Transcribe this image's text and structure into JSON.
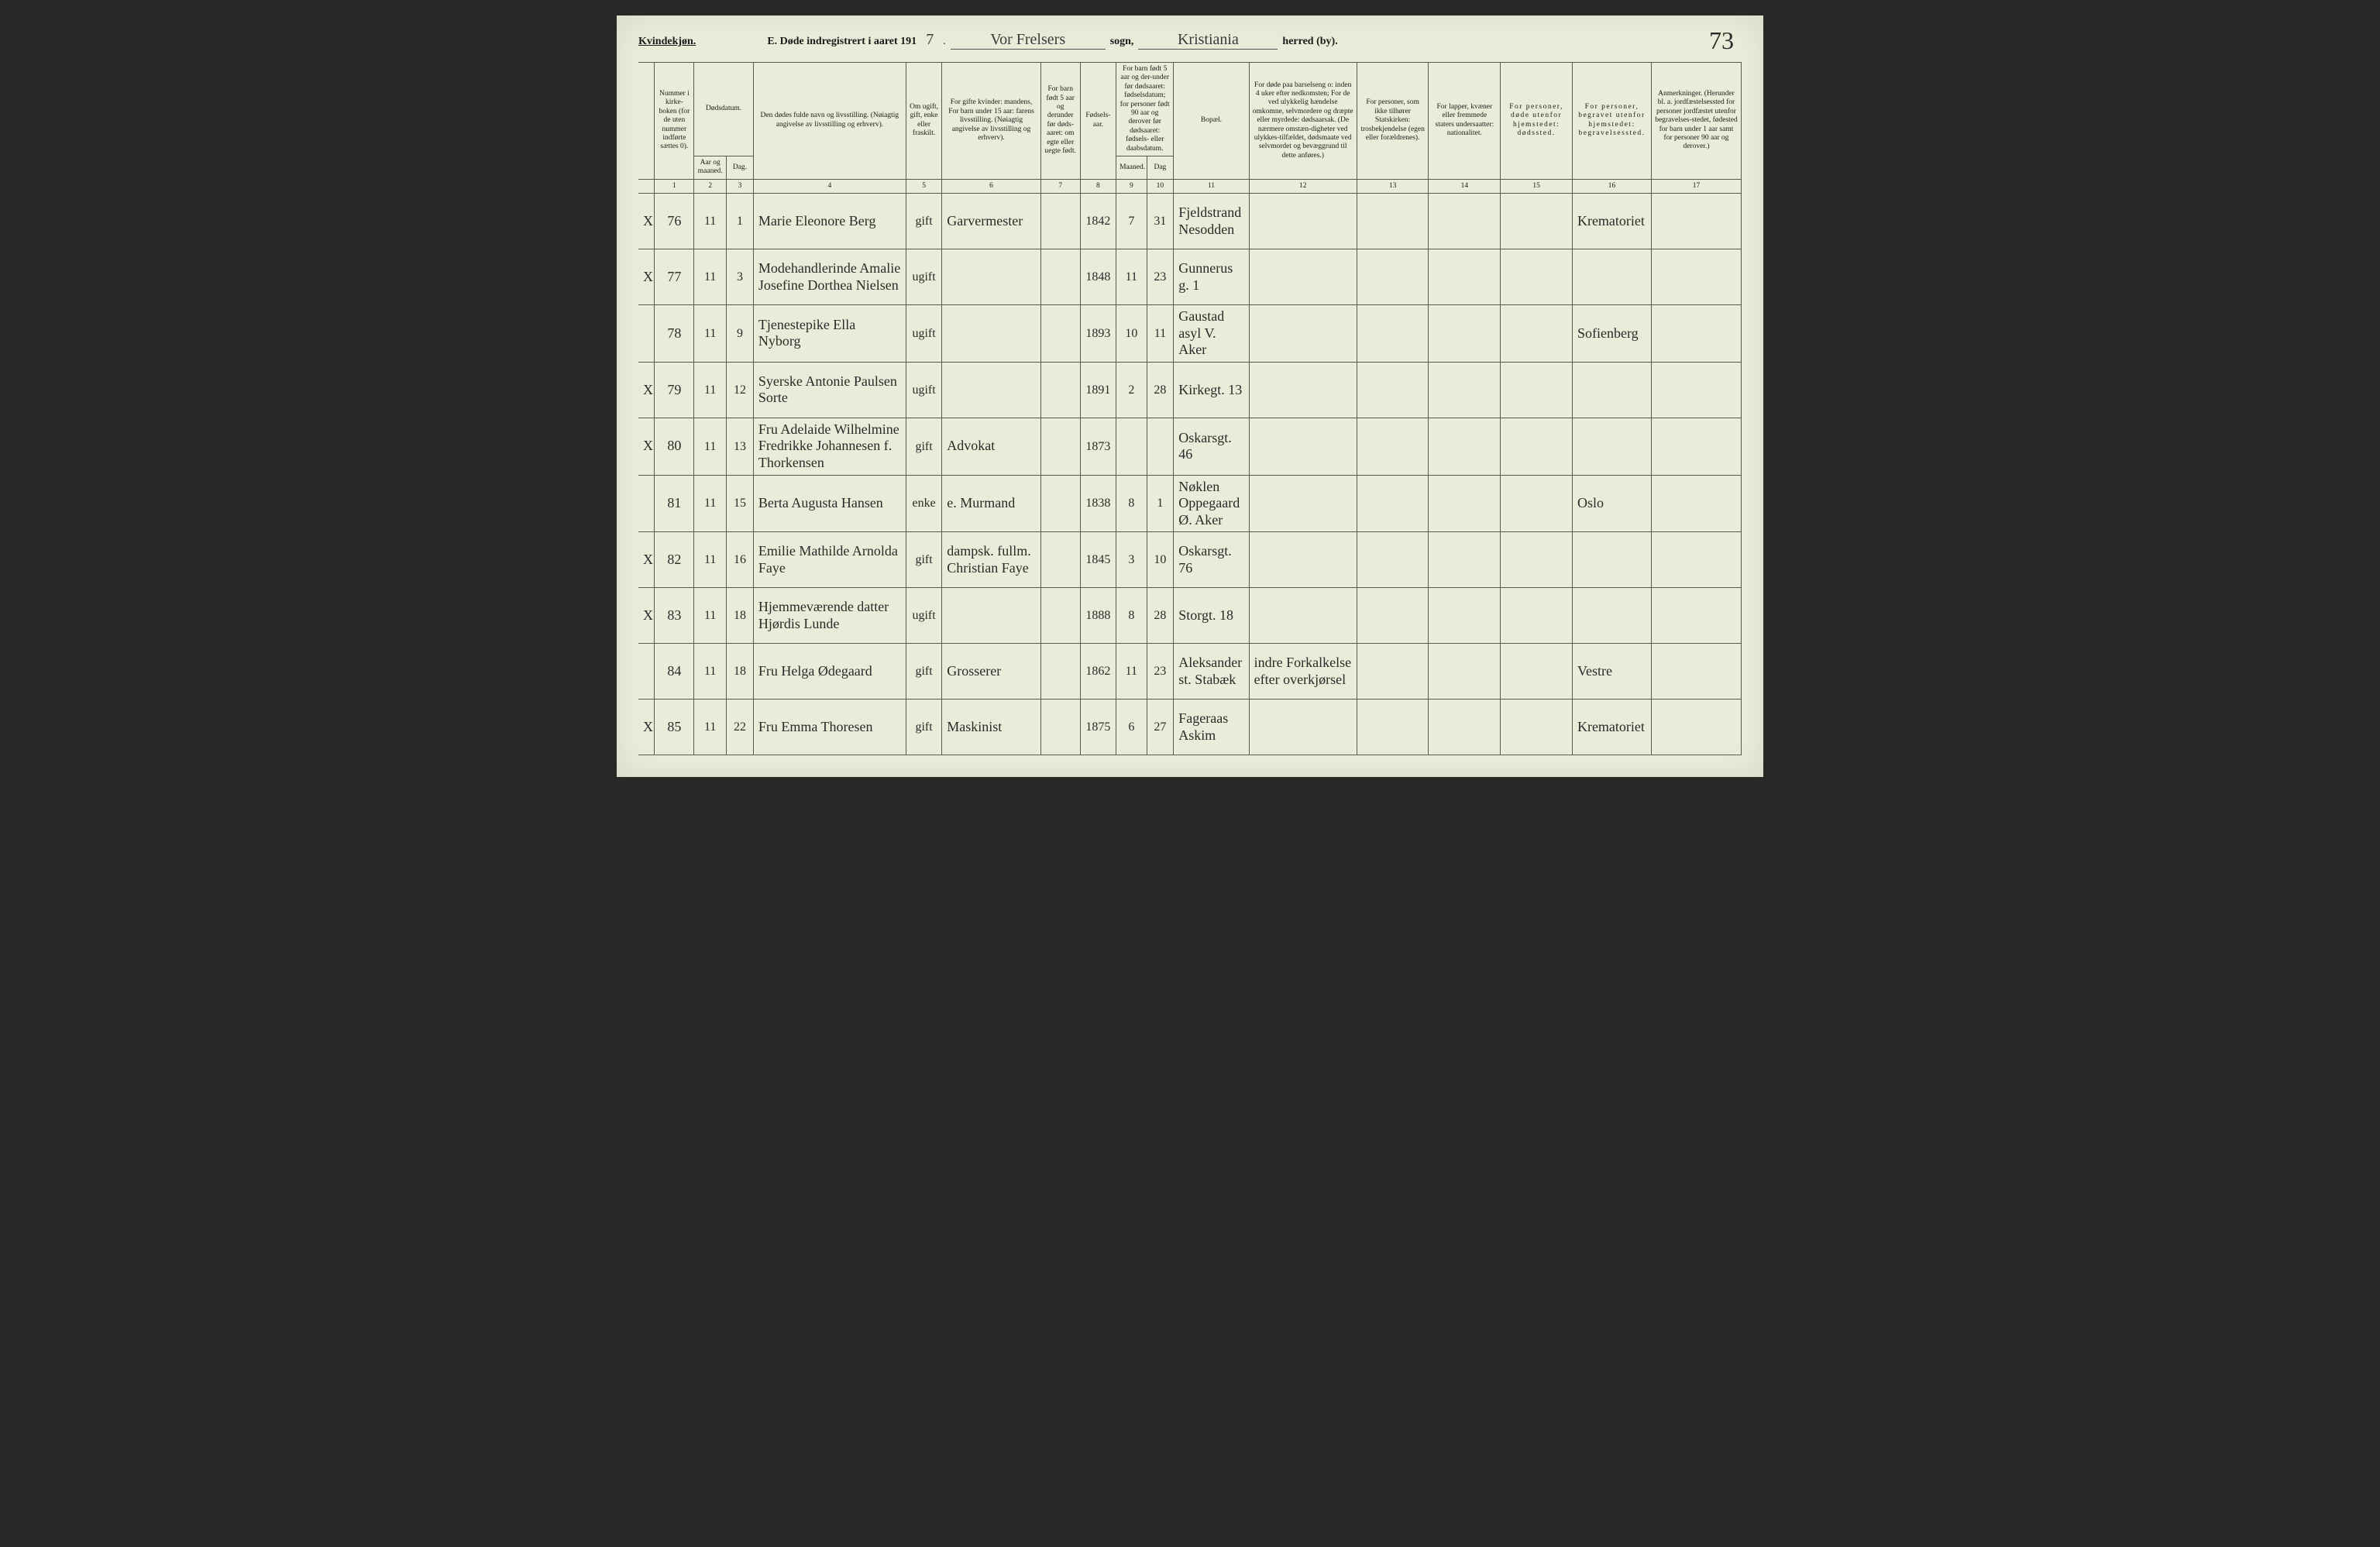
{
  "page": {
    "gender_header": "Kvindekjøn.",
    "title_prefix": "E.  Døde indregistrert i aaret 191",
    "year_digit": "7",
    "sogn_label": "sogn,",
    "herred_label": "herred (by).",
    "sogn_value": "Vor Frelsers",
    "herred_value": "Kristiania",
    "page_number": "73"
  },
  "columns": {
    "c1": "Nummer i kirke-boken (for de uten nummer indførte sættes 0).",
    "c2_top": "Dødsdatum.",
    "c2a": "Aar og maaned.",
    "c2b": "Dag.",
    "c4": "Den dødes fulde navn og livsstilling. (Nøiagtig angivelse av livsstilling og erhverv).",
    "c5": "Om ugift, gift, enke eller fraskilt.",
    "c6": "For gifte kvinder: mandens, For barn under 15 aar: farens livsstilling. (Nøiagtig angivelse av livsstilling og erhverv).",
    "c7": "For barn født 5 aar og derunder før døds-aaret: om egte eller uegte født.",
    "c8": "Fødsels-aar.",
    "c9_top": "For barn født 5 aar og der-under før dødsaaret: fødselsdatum; for personer født 90 aar og derover før dødsaaret: fødsels- eller daabsdatum.",
    "c9a": "Maaned.",
    "c9b": "Dag",
    "c11": "Bopæl.",
    "c12": "For døde paa barselseng o: inden 4 uker efter nedkomsten; For de ved ulykkelig hændelse omkomne, selvmordere og dræpte eller myrdede: dødsaarsak. (De nærmere omstæn-digheter ved ulykkes-tilfældet, dødsmaate ved selvmordet og bevæggrund til dette anføres.)",
    "c13": "For personer, som ikke tilhører Statskirken: trosbekjendelse (egen eller forældrenes).",
    "c14": "For lapper, kvæner eller fremmede staters undersaatter: nationalitet.",
    "c15": "For personer, døde utenfor hjemstedet: dødssted.",
    "c16": "For personer, begravet utenfor hjemstedet: begravelsessted.",
    "c17": "Anmerkninger. (Herunder bl. a. jordfæstelsessted for personer jordfæstet utenfor begravelses-stedet, fødested for barn under 1 aar samt for personer 90 aar og derover.)"
  },
  "colnums": [
    "1",
    "2",
    "3",
    "4",
    "5",
    "6",
    "7",
    "8",
    "9",
    "10",
    "11",
    "12",
    "13",
    "14",
    "15",
    "16",
    "17"
  ],
  "rows": [
    {
      "mark": "X",
      "no": "76",
      "mnd": "11",
      "dag": "1",
      "navn": "Marie Eleonore Berg",
      "stand": "gift",
      "mand": "Garvermester",
      "egte": "",
      "faar": "1842",
      "fm": "7",
      "fd": "31",
      "bopael": "Fjeldstrand Nesodden",
      "c12": "",
      "c13": "",
      "c14": "",
      "c15": "",
      "c16": "Krematoriet",
      "c17": ""
    },
    {
      "mark": "X",
      "no": "77",
      "mnd": "11",
      "dag": "3",
      "navn": "Modehandlerinde Amalie Josefine Dorthea Nielsen",
      "stand": "ugift",
      "mand": "",
      "egte": "",
      "faar": "1848",
      "fm": "11",
      "fd": "23",
      "bopael": "Gunnerus g. 1",
      "c12": "",
      "c13": "",
      "c14": "",
      "c15": "",
      "c16": "",
      "c17": ""
    },
    {
      "mark": "",
      "no": "78",
      "mnd": "11",
      "dag": "9",
      "navn": "Tjenestepike Ella Nyborg",
      "stand": "ugift",
      "mand": "",
      "egte": "",
      "faar": "1893",
      "fm": "10",
      "fd": "11",
      "bopael": "Gaustad asyl V. Aker",
      "c12": "",
      "c13": "",
      "c14": "",
      "c15": "",
      "c16": "Sofienberg",
      "c17": ""
    },
    {
      "mark": "X",
      "no": "79",
      "mnd": "11",
      "dag": "12",
      "navn": "Syerske Antonie Paulsen Sorte",
      "stand": "ugift",
      "mand": "",
      "egte": "",
      "faar": "1891",
      "fm": "2",
      "fd": "28",
      "bopael": "Kirkegt. 13",
      "c12": "",
      "c13": "",
      "c14": "",
      "c15": "",
      "c16": "",
      "c17": ""
    },
    {
      "mark": "X",
      "no": "80",
      "mnd": "11",
      "dag": "13",
      "navn": "Fru Adelaide Wilhelmine Fredrikke Johannesen f. Thorkensen",
      "stand": "gift",
      "mand": "Advokat",
      "egte": "",
      "faar": "1873",
      "fm": "",
      "fd": "",
      "bopael": "Oskarsgt. 46",
      "c12": "",
      "c13": "",
      "c14": "",
      "c15": "",
      "c16": "",
      "c17": ""
    },
    {
      "mark": "",
      "no": "81",
      "mnd": "11",
      "dag": "15",
      "navn": "Berta Augusta Hansen",
      "stand": "enke",
      "mand": "e. Murmand",
      "egte": "",
      "faar": "1838",
      "fm": "8",
      "fd": "1",
      "bopael": "Nøklen Oppegaard Ø. Aker",
      "c12": "",
      "c13": "",
      "c14": "",
      "c15": "",
      "c16": "Oslo",
      "c17": ""
    },
    {
      "mark": "X",
      "no": "82",
      "mnd": "11",
      "dag": "16",
      "navn": "Emilie Mathilde Arnolda Faye",
      "stand": "gift",
      "mand": "dampsk. fullm. Christian Faye",
      "egte": "",
      "faar": "1845",
      "fm": "3",
      "fd": "10",
      "bopael": "Oskarsgt. 76",
      "c12": "",
      "c13": "",
      "c14": "",
      "c15": "",
      "c16": "",
      "c17": ""
    },
    {
      "mark": "X",
      "no": "83",
      "mnd": "11",
      "dag": "18",
      "navn": "Hjemmeværende datter Hjørdis Lunde",
      "stand": "ugift",
      "mand": "",
      "egte": "",
      "faar": "1888",
      "fm": "8",
      "fd": "28",
      "bopael": "Storgt. 18",
      "c12": "",
      "c13": "",
      "c14": "",
      "c15": "",
      "c16": "",
      "c17": ""
    },
    {
      "mark": "",
      "no": "84",
      "mnd": "11",
      "dag": "18",
      "navn": "Fru Helga Ødegaard",
      "stand": "gift",
      "mand": "Grosserer",
      "egte": "",
      "faar": "1862",
      "fm": "11",
      "fd": "23",
      "bopael": "Aleksander st. Stabæk",
      "c12": "indre Forkalkelse efter overkjørsel",
      "c13": "",
      "c14": "",
      "c15": "",
      "c16": "Vestre",
      "c17": ""
    },
    {
      "mark": "X",
      "no": "85",
      "mnd": "11",
      "dag": "22",
      "navn": "Fru Emma Thoresen",
      "stand": "gift",
      "mand": "Maskinist",
      "egte": "",
      "faar": "1875",
      "fm": "6",
      "fd": "27",
      "bopael": "Fageraas Askim",
      "c12": "",
      "c13": "",
      "c14": "",
      "c15": "",
      "c16": "Krematoriet",
      "c17": ""
    }
  ],
  "col_widths": {
    "mark": "18px",
    "c1": "44px",
    "c2a": "36px",
    "c2b": "30px",
    "c4": "170px",
    "c5": "40px",
    "c6": "110px",
    "c7": "44px",
    "c8": "40px",
    "c9a": "34px",
    "c9b": "30px",
    "c11": "84px",
    "c12": "120px",
    "c13": "80px",
    "c14": "80px",
    "c15": "80px",
    "c16": "88px",
    "c17": "100px"
  },
  "colors": {
    "paper": "#e8ecd8",
    "ink": "#1a1a1a",
    "rule": "#5a5a50",
    "script": "#2a2a2a"
  }
}
